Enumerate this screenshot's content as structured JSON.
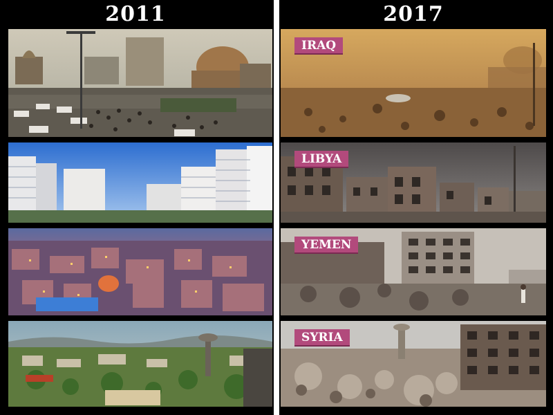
{
  "headers": {
    "left_year": "2011",
    "right_year": "2017"
  },
  "rows": [
    {
      "left_scene": "busy-city-square",
      "right_label": "IRAQ"
    },
    {
      "left_scene": "residential-towers",
      "right_label": "LIBYA"
    },
    {
      "left_scene": "city-at-dusk",
      "right_label": "YEMEN"
    },
    {
      "left_scene": "green-city-with-water-tower",
      "right_label": "SYRIA"
    }
  ],
  "colors": {
    "background": "#000000",
    "label_badge": "#b24a7c",
    "header_text": "#ffffff"
  }
}
